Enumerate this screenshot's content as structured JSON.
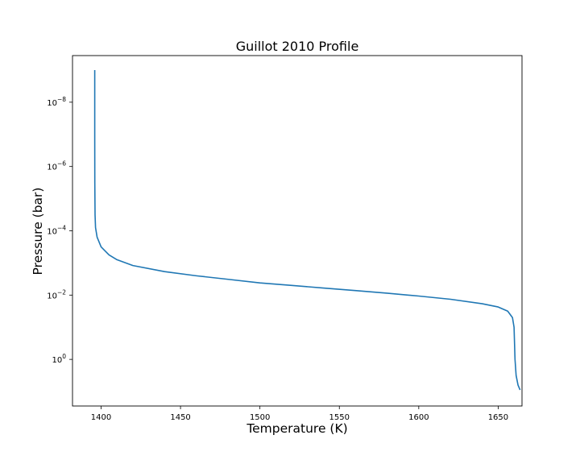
{
  "chart_data": {
    "type": "line",
    "title": "Guillot 2010 Profile",
    "xlabel": "Temperature (K)",
    "ylabel": "Pressure (bar)",
    "xlim": [
      1382,
      1665
    ],
    "ylim_log10": [
      1.45,
      -9.45
    ],
    "y_scale": "log",
    "y_inverted": true,
    "grid": false,
    "x_ticks": [
      1400,
      1450,
      1500,
      1550,
      1600,
      1650
    ],
    "x_tick_labels": [
      "1400",
      "1450",
      "1500",
      "1550",
      "1600",
      "1650"
    ],
    "y_ticks_log10": [
      -8,
      -6,
      -4,
      -2,
      0
    ],
    "y_tick_labels": [
      {
        "base": "10",
        "exp": "−8"
      },
      {
        "base": "10",
        "exp": "−6"
      },
      {
        "base": "10",
        "exp": "−4"
      },
      {
        "base": "10",
        "exp": "−2"
      },
      {
        "base": "10",
        "exp": "0"
      }
    ],
    "series": [
      {
        "color": "#1f77b4",
        "points": [
          {
            "T": 1396.0,
            "log10P": -9.0
          },
          {
            "T": 1396.0,
            "log10P": -7.0
          },
          {
            "T": 1396.05,
            "log10P": -5.5
          },
          {
            "T": 1396.2,
            "log10P": -4.5
          },
          {
            "T": 1396.5,
            "log10P": -4.1
          },
          {
            "T": 1397.5,
            "log10P": -3.8
          },
          {
            "T": 1400.0,
            "log10P": -3.5
          },
          {
            "T": 1405.0,
            "log10P": -3.25
          },
          {
            "T": 1410.0,
            "log10P": -3.1
          },
          {
            "T": 1420.0,
            "log10P": -2.92
          },
          {
            "T": 1440.0,
            "log10P": -2.73
          },
          {
            "T": 1460.0,
            "log10P": -2.6
          },
          {
            "T": 1480.0,
            "log10P": -2.49
          },
          {
            "T": 1500.0,
            "log10P": -2.38
          },
          {
            "T": 1520.0,
            "log10P": -2.3
          },
          {
            "T": 1540.0,
            "log10P": -2.22
          },
          {
            "T": 1560.0,
            "log10P": -2.14
          },
          {
            "T": 1580.0,
            "log10P": -2.06
          },
          {
            "T": 1600.0,
            "log10P": -1.97
          },
          {
            "T": 1620.0,
            "log10P": -1.87
          },
          {
            "T": 1640.0,
            "log10P": -1.73
          },
          {
            "T": 1650.0,
            "log10P": -1.63
          },
          {
            "T": 1656.0,
            "log10P": -1.5
          },
          {
            "T": 1659.0,
            "log10P": -1.3
          },
          {
            "T": 1660.0,
            "log10P": -1.0
          },
          {
            "T": 1660.3,
            "log10P": -0.5
          },
          {
            "T": 1660.6,
            "log10P": 0.0
          },
          {
            "T": 1661.3,
            "log10P": 0.5
          },
          {
            "T": 1662.5,
            "log10P": 0.8
          },
          {
            "T": 1663.8,
            "log10P": 0.95
          }
        ]
      }
    ]
  }
}
